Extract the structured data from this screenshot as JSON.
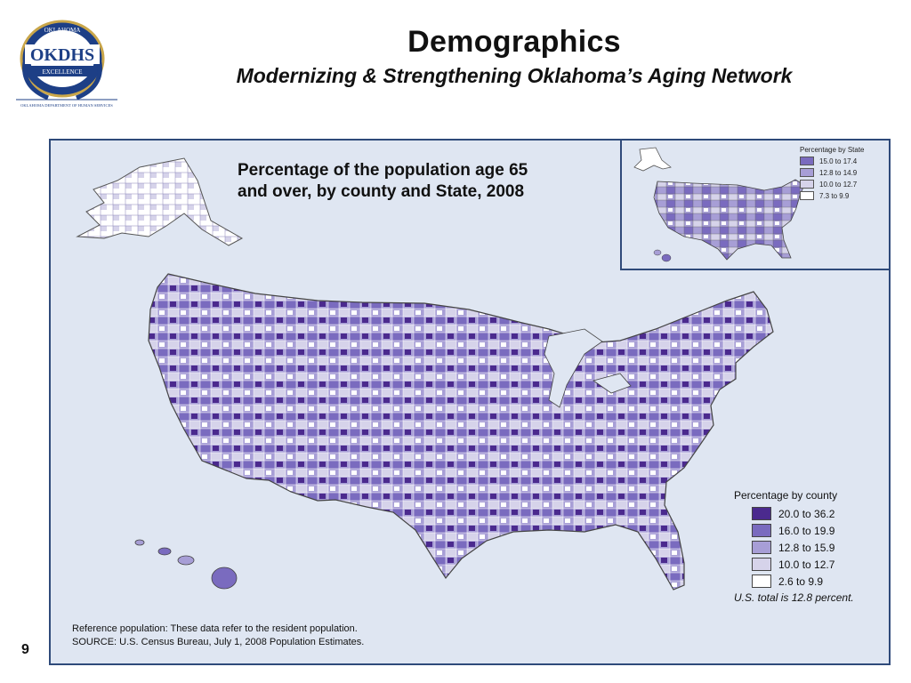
{
  "slide": {
    "title": "Demographics",
    "subtitle": "Modernizing & Strengthening Oklahoma’s Aging Network",
    "page_number": "9"
  },
  "logo": {
    "top_text": "OKLAHOMA",
    "main_text": "OKDHS",
    "band_text": "EXCELLENCE",
    "bottom_text": "OKLAHOMA DEPARTMENT OF HUMAN SERVICES"
  },
  "map": {
    "title_line1": "Percentage of the population age 65",
    "title_line2": "and over, by county and State, 2008",
    "county_legend": {
      "title": "Percentage by county",
      "items": [
        {
          "label": "20.0 to 36.2",
          "color": "#4b2a8e"
        },
        {
          "label": "16.0 to 19.9",
          "color": "#7a6bbf"
        },
        {
          "label": "12.8 to 15.9",
          "color": "#a79ed6"
        },
        {
          "label": "10.0 to 12.7",
          "color": "#d6d3ea"
        },
        {
          "label": "2.6 to 9.9",
          "color": "#ffffff"
        }
      ],
      "total_note": "U.S. total is 12.8 percent."
    },
    "state_legend": {
      "title": "Percentage by State",
      "items": [
        {
          "label": "15.0 to 17.4",
          "color": "#7a6bbf"
        },
        {
          "label": "12.8 to 14.9",
          "color": "#a79ed6"
        },
        {
          "label": "10.0 to 12.7",
          "color": "#d6d3ea"
        },
        {
          "label": "7.3 to 9.9",
          "color": "#ffffff"
        }
      ]
    },
    "footnote_line1": "Reference population:  These data refer to the resident population.",
    "footnote_line2": "SOURCE:  U.S. Census Bureau, July 1, 2008 Population Estimates."
  }
}
